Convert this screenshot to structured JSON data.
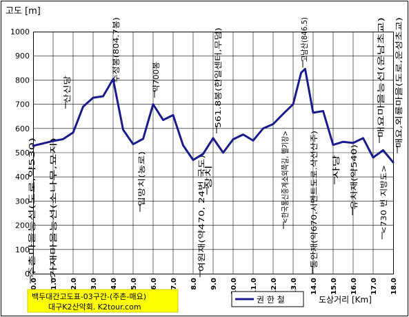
{
  "chart_data": {
    "type": "line",
    "title": "백두대간고도표-03구간-(주촌-매요)",
    "subtitle": "대구K2산악회. K2tour.com",
    "ylabel": "고도 [m]",
    "xlabel": "도상거리 [Km]",
    "ylim": [
      0,
      1000
    ],
    "xlim": [
      0,
      18
    ],
    "grid": true,
    "legend": {
      "position": "bottom",
      "label": "권 한 철"
    },
    "y_ticks": [
      "0",
      "100",
      "200",
      "300",
      "400",
      "500",
      "600",
      "700",
      "800",
      "900",
      "1000"
    ],
    "x_ticks": [
      "0.0",
      "1.0",
      "2.0",
      "3.0",
      "4.0",
      "5.0",
      "6.0",
      "7.0",
      "8.0",
      "9.0",
      "10.0",
      "11.0",
      "12.0",
      "13.0",
      "14.0",
      "15.0",
      "16.0",
      "17.0",
      "18.0"
    ],
    "series": [
      {
        "name": "권 한 철",
        "color": "#1a1a8c",
        "x": [
          0.0,
          0.5,
          1.0,
          1.5,
          2.0,
          2.5,
          3.0,
          3.5,
          4.0,
          4.5,
          5.0,
          5.5,
          6.0,
          6.5,
          7.0,
          7.5,
          8.0,
          8.5,
          9.0,
          9.5,
          10.0,
          10.5,
          11.0,
          11.5,
          12.0,
          12.5,
          13.0,
          13.4,
          13.6,
          14.0,
          14.5,
          15.0,
          15.5,
          16.0,
          16.5,
          17.0,
          17.5,
          18.0
        ],
        "y": [
          528,
          538,
          548,
          556,
          583,
          690,
          727,
          733,
          804,
          595,
          535,
          557,
          700,
          635,
          655,
          530,
          470,
          495,
          560,
          500,
          555,
          575,
          550,
          600,
          618,
          660,
          700,
          830,
          846,
          665,
          672,
          532,
          545,
          540,
          560,
          480,
          510,
          460
        ]
      }
    ],
    "annotations": [
      {
        "x": 0.0,
        "text": "주촌마을능선(도로,약530)"
      },
      {
        "x": 1.0,
        "text": "가재마을능선(소나무,묘지)"
      },
      {
        "x": 2.0,
        "text": "산신당"
      },
      {
        "x": 4.0,
        "text": "수정봉(804.7봉)"
      },
      {
        "x": 5.0,
        "text": "입망치(농로)"
      },
      {
        "x": 6.0,
        "text": "약700봉"
      },
      {
        "x": 8.0,
        "text": "여원재(약470, 24번 국도)"
      },
      {
        "x": 9.0,
        "text": "561.8봉(한일센터,무덤)"
      },
      {
        "x": 9.0,
        "text": "장치"
      },
      {
        "x": 13.0,
        "text": "<한국통신중계소외쪽길, 헬기장>"
      },
      {
        "x": 13.5,
        "text": "고남산(846.5)"
      },
      {
        "x": 14.0,
        "text": "통안재(약670,시멘트도로.삭선산주)"
      },
      {
        "x": 15.0,
        "text": "사당"
      },
      {
        "x": 16.0,
        "text": "유치재(약540)"
      },
      {
        "x": 17.0,
        "text": "매요마을능선(운남초교)"
      },
      {
        "x": 17.0,
        "text": "<730 번 지방도>"
      },
      {
        "x": 18.0,
        "text": "매요,외룡마을(도로,운성초교)"
      }
    ]
  }
}
